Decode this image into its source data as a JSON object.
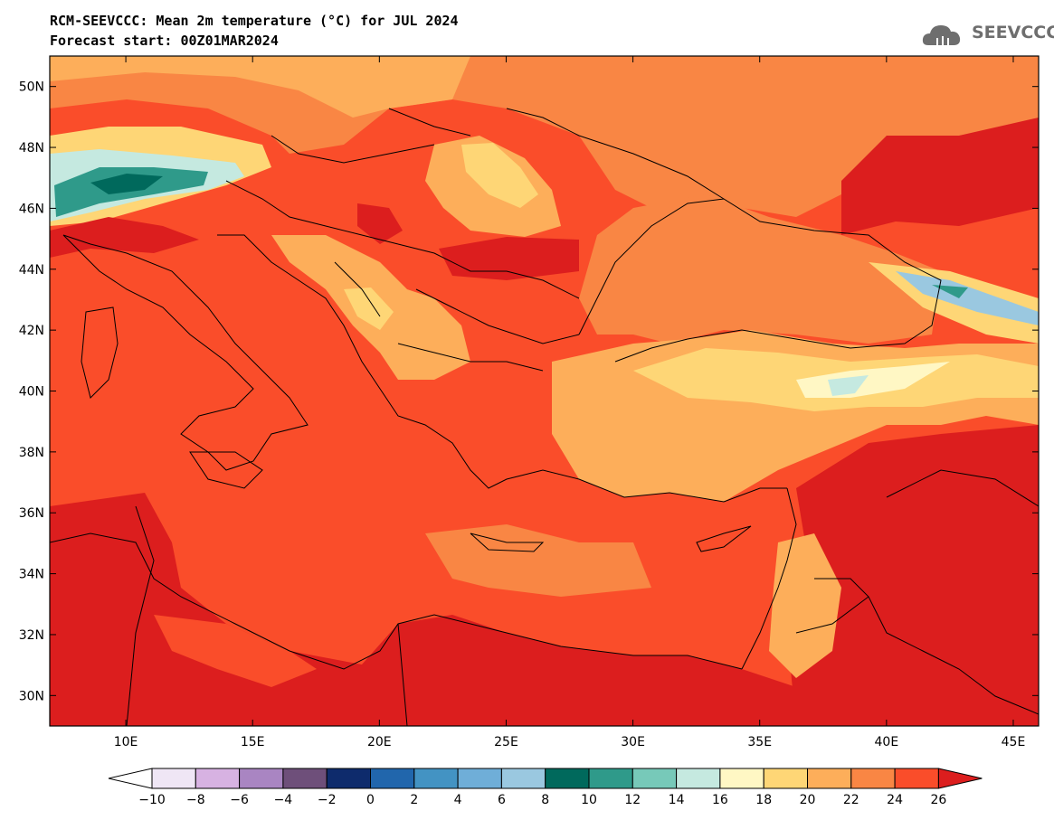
{
  "header": {
    "title": "RCM-SEEVCCC: Mean 2m temperature (°C) for JUL 2024",
    "subtitle": "Forecast start: 00Z01MAR2024"
  },
  "logo": {
    "text": "SEEVCCC",
    "icon": "cloud-icon"
  },
  "map": {
    "lon_range": [
      7,
      46
    ],
    "lat_range": [
      29,
      51
    ],
    "lat_ticks": [
      "50N",
      "48N",
      "46N",
      "44N",
      "42N",
      "40N",
      "38N",
      "36N",
      "34N",
      "32N",
      "30N"
    ],
    "lon_ticks": [
      "10E",
      "15E",
      "20E",
      "25E",
      "30E",
      "35E",
      "40E",
      "45E"
    ],
    "background_class_color": "#fa4d2a"
  },
  "colorbar": {
    "labels": [
      "-10",
      "-8",
      "-6",
      "-4",
      "-2",
      "0",
      "2",
      "4",
      "6",
      "8",
      "10",
      "12",
      "14",
      "16",
      "18",
      "20",
      "22",
      "24",
      "26"
    ],
    "colors": [
      "#ffffff",
      "#efe6f5",
      "#d7b2e2",
      "#a985c2",
      "#6e4f7a",
      "#0e2b6c",
      "#2166ac",
      "#4393c3",
      "#6faed8",
      "#9ac8e0",
      "#00695c",
      "#2f9a8a",
      "#77c9b9",
      "#c5e9e0",
      "#fff7c4",
      "#fed676",
      "#fdae5a",
      "#f98644",
      "#fa4d2a",
      "#dc1e1e"
    ]
  }
}
